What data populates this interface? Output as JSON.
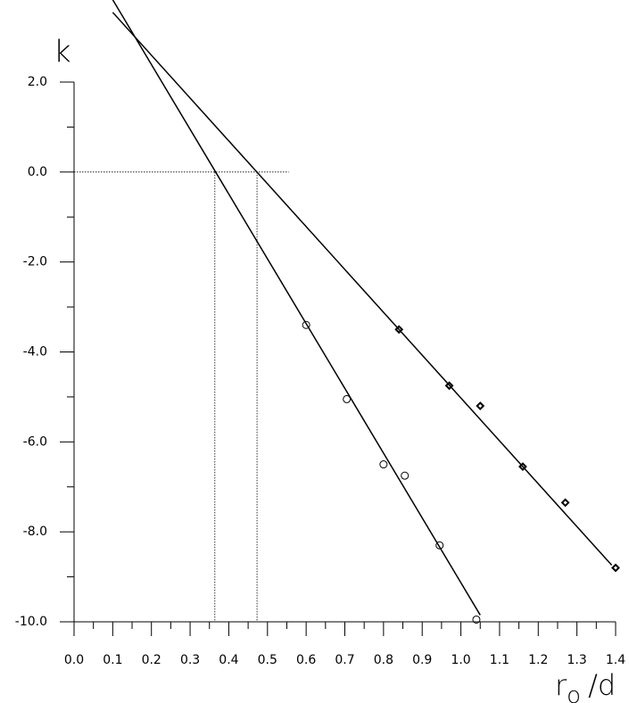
{
  "chart_data": {
    "type": "scatter",
    "y_label": "k",
    "x_label": {
      "main": "r",
      "sub": "o",
      "tail": "/d"
    },
    "xlim": [
      0,
      1.4
    ],
    "ylim": [
      -10,
      3.83
    ],
    "xticks": [
      {
        "value": 0,
        "label": "0.0"
      },
      0.1,
      0.2,
      0.3,
      0.4,
      0.5,
      0.6,
      0.7,
      0.8,
      0.9,
      {
        "value": 1,
        "label": "1.0"
      },
      1.1,
      1.2,
      1.3,
      1.4
    ],
    "xticks_minor": [
      0.05,
      0.15,
      0.25,
      0.35,
      0.45,
      0.55,
      0.65,
      0.75,
      0.85,
      0.95,
      1.05,
      1.15,
      1.25,
      1.35
    ],
    "yticks": [
      {
        "value": 2,
        "label": "2.0"
      },
      {
        "value": 0,
        "label": "0.0"
      },
      {
        "value": -2,
        "label": "-2.0"
      },
      {
        "value": -4,
        "label": "-4.0"
      },
      {
        "value": -6,
        "label": "-6.0"
      },
      {
        "value": -8,
        "label": "-8.0"
      },
      {
        "value": -10,
        "label": "-10.0"
      }
    ],
    "yticks_minor": [
      1,
      -1,
      -3,
      -5,
      -7,
      -9
    ],
    "series": [
      {
        "marker": "circle",
        "color": "#000000",
        "x": [
          0.6,
          0.705,
          0.8,
          0.855,
          0.945,
          1.04
        ],
        "values": [
          -3.4,
          -5.05,
          -6.5,
          -6.75,
          -8.3,
          -9.95
        ]
      },
      {
        "marker": "diamond",
        "color": "#000000",
        "x": [
          0.84,
          0.97,
          1.05,
          1.16,
          1.27,
          1.4
        ],
        "values": [
          -3.5,
          -4.75,
          -5.2,
          -6.55,
          -7.35,
          -8.8
        ]
      },
      {
        "marker": "line",
        "color": "#000000",
        "x": [
          0.1,
          1.05
        ],
        "values": [
          3.83,
          -9.85
        ]
      },
      {
        "marker": "line",
        "color": "#000000",
        "x": [
          0.1,
          1.39
        ],
        "values": [
          3.55,
          -8.74
        ]
      }
    ],
    "reference_lines": {
      "hline": 0,
      "hline_xmax": 0.555,
      "vlines": [
        0.364,
        0.473
      ]
    }
  }
}
